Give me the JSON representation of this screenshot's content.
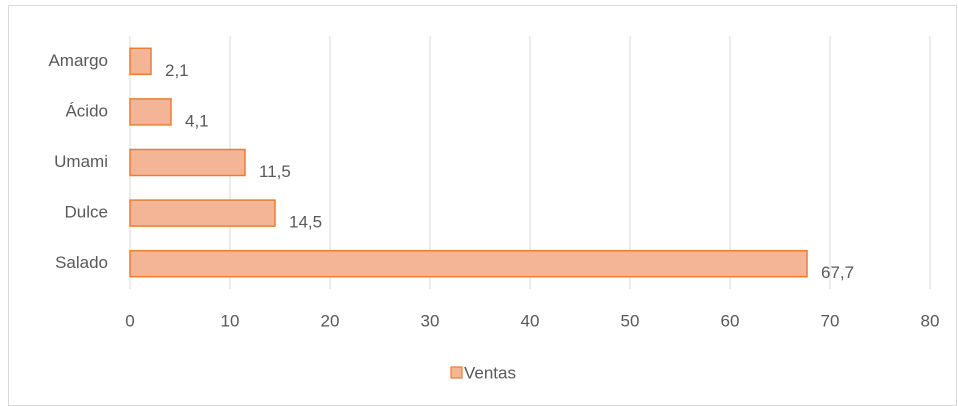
{
  "chart_data": {
    "type": "hbar",
    "categories": [
      "Amargo",
      "Ácido",
      "Umami",
      "Dulce",
      "Salado"
    ],
    "series": [
      {
        "name": "Ventas",
        "color": "#f4b596",
        "edge": "#ed7d31",
        "values": [
          2.1,
          4.1,
          11.5,
          14.5,
          67.7
        ],
        "value_labels": [
          "2,1",
          "4,1",
          "11,5",
          "14,5",
          "67,7"
        ]
      }
    ],
    "xlim": [
      0,
      80
    ],
    "xticks": [
      0,
      10,
      20,
      30,
      40,
      50,
      60,
      70,
      80
    ],
    "grid": true,
    "legend": "bottom"
  }
}
